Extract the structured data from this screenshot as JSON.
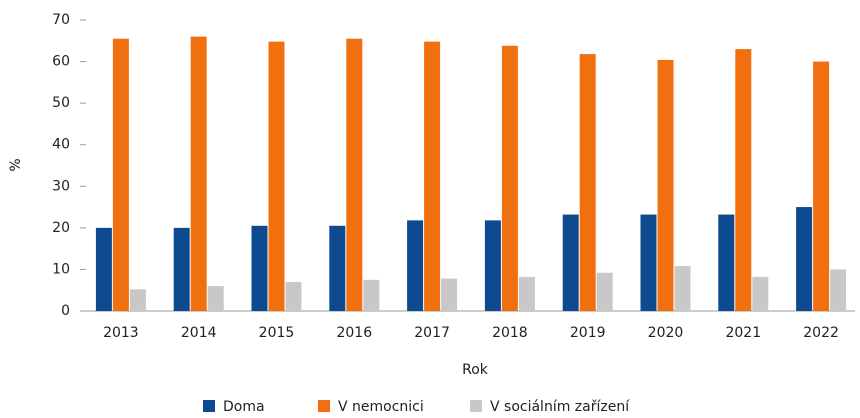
{
  "chart_data": {
    "type": "bar",
    "xlabel": "Rok",
    "ylabel": "%",
    "categories": [
      "2013",
      "2014",
      "2015",
      "2016",
      "2017",
      "2018",
      "2019",
      "2020",
      "2021",
      "2022"
    ],
    "series": [
      {
        "name": "Doma",
        "color": "#0d4a8f",
        "values": [
          20,
          20,
          20.5,
          20.5,
          21.8,
          21.8,
          23.2,
          23.2,
          23.2,
          25
        ]
      },
      {
        "name": "V nemocnici",
        "color": "#f07010",
        "values": [
          65.5,
          66,
          64.8,
          65.5,
          64.8,
          63.8,
          61.8,
          60.4,
          63,
          60
        ]
      },
      {
        "name": "V sociálním zařízení",
        "color": "#c8c8c8",
        "values": [
          5.2,
          6,
          7,
          7.5,
          7.8,
          8.2,
          9.2,
          10.8,
          8.2,
          10
        ]
      }
    ],
    "ylim": [
      0,
      70
    ],
    "yticks": [
      0,
      10,
      20,
      30,
      40,
      50,
      60,
      70
    ],
    "grid": false,
    "legend": "bottom"
  }
}
